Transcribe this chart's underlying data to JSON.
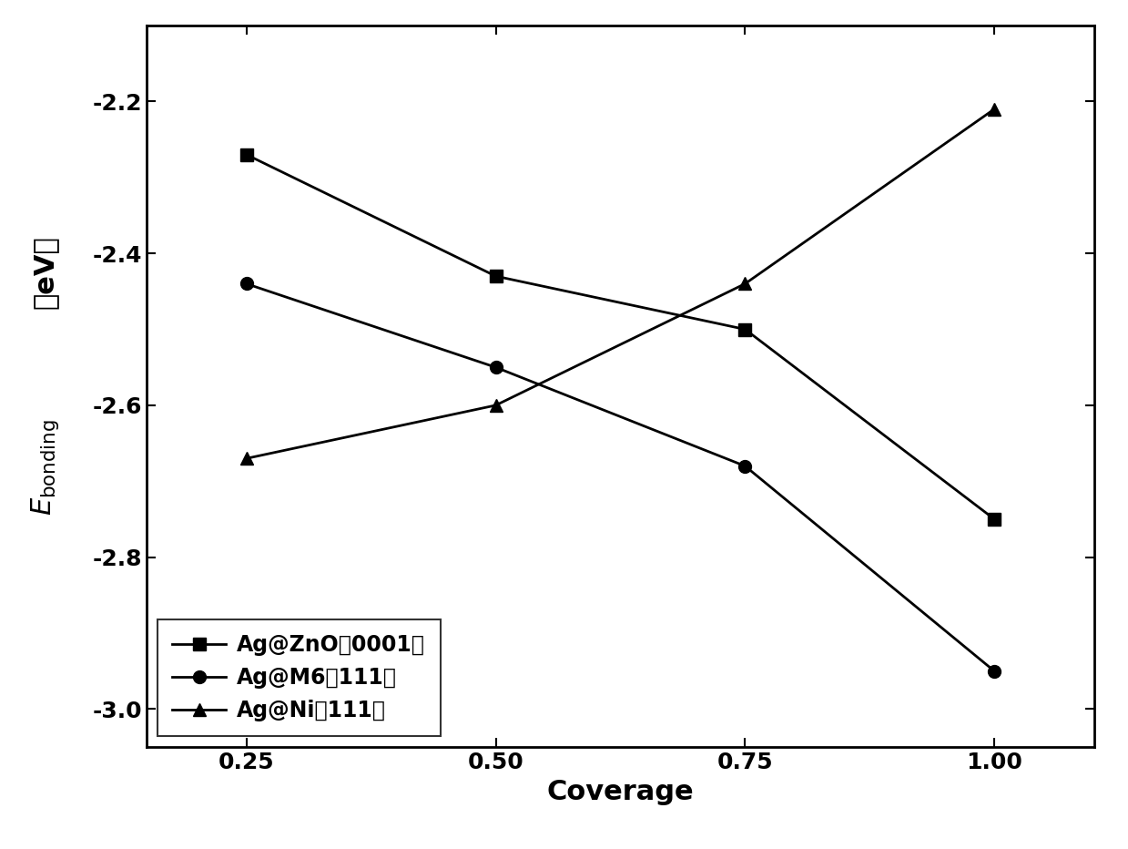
{
  "coverage": [
    0.25,
    0.5,
    0.75,
    1.0
  ],
  "ZnO_0001": [
    -2.27,
    -2.43,
    -2.5,
    -2.75
  ],
  "M6_111": [
    -2.44,
    -2.55,
    -2.68,
    -2.95
  ],
  "Ni_111": [
    -2.67,
    -2.6,
    -2.44,
    -2.21
  ],
  "xlabel": "Coverage",
  "ylim": [
    -3.05,
    -2.1
  ],
  "xlim": [
    0.15,
    1.1
  ],
  "xticks": [
    0.25,
    0.5,
    0.75,
    1.0
  ],
  "yticks": [
    -3.0,
    -2.8,
    -2.6,
    -2.4,
    -2.2
  ],
  "legend_labels": [
    "Ag@ZnO（0001）",
    "Ag@M6（111）",
    "Ag@Ni（111）"
  ],
  "line_color": "#000000",
  "marker_square": "s",
  "marker_circle": "o",
  "marker_triangle": "^",
  "markersize": 10,
  "linewidth": 2.0,
  "label_fontsize": 22,
  "tick_fontsize": 18,
  "legend_fontsize": 17,
  "background_color": "#ffffff",
  "figure_background": "#ffffff"
}
